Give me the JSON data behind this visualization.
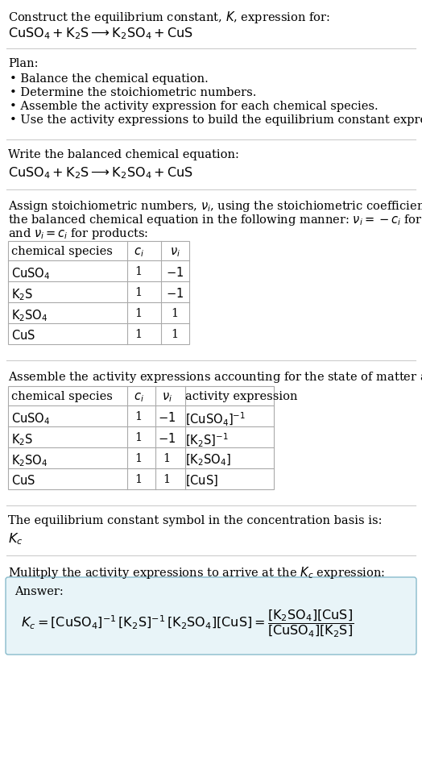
{
  "title_line1": "Construct the equilibrium constant, $K$, expression for:",
  "title_line2": "$\\mathrm{CuSO_4 + K_2S \\longrightarrow K_2SO_4 + CuS}$",
  "plan_header": "Plan:",
  "plan_items": [
    "• Balance the chemical equation.",
    "• Determine the stoichiometric numbers.",
    "• Assemble the activity expression for each chemical species.",
    "• Use the activity expressions to build the equilibrium constant expression."
  ],
  "balanced_header": "Write the balanced chemical equation:",
  "balanced_eq": "$\\mathrm{CuSO_4 + K_2S \\longrightarrow K_2SO_4 + CuS}$",
  "stoich_line1": "Assign stoichiometric numbers, $\\nu_i$, using the stoichiometric coefficients, $c_i$, from",
  "stoich_line2": "the balanced chemical equation in the following manner: $\\nu_i = -c_i$ for reactants",
  "stoich_line3": "and $\\nu_i = c_i$ for products:",
  "table1_headers": [
    "chemical species",
    "$c_i$",
    "$\\nu_i$"
  ],
  "table1_rows": [
    [
      "$\\mathrm{CuSO_4}$",
      "1",
      "$-1$"
    ],
    [
      "$\\mathrm{K_2S}$",
      "1",
      "$-1$"
    ],
    [
      "$\\mathrm{K_2SO_4}$",
      "1",
      "1"
    ],
    [
      "$\\mathrm{CuS}$",
      "1",
      "1"
    ]
  ],
  "activity_header": "Assemble the activity expressions accounting for the state of matter and $\\nu_i$:",
  "table2_headers": [
    "chemical species",
    "$c_i$",
    "$\\nu_i$",
    "activity expression"
  ],
  "table2_rows": [
    [
      "$\\mathrm{CuSO_4}$",
      "1",
      "$-1$",
      "$[\\mathrm{CuSO_4}]^{-1}$"
    ],
    [
      "$\\mathrm{K_2S}$",
      "1",
      "$-1$",
      "$[\\mathrm{K_2S}]^{-1}$"
    ],
    [
      "$\\mathrm{K_2SO_4}$",
      "1",
      "1",
      "$[\\mathrm{K_2SO_4}]$"
    ],
    [
      "$\\mathrm{CuS}$",
      "1",
      "1",
      "$[\\mathrm{CuS}]$"
    ]
  ],
  "kc_header": "The equilibrium constant symbol in the concentration basis is:",
  "kc_symbol": "$K_c$",
  "multiply_header": "Mulitply the activity expressions to arrive at the $K_c$ expression:",
  "answer_label": "Answer:",
  "answer_eq": "$K_c = [\\mathrm{CuSO_4}]^{-1}\\,[\\mathrm{K_2S}]^{-1}\\,[\\mathrm{K_2SO_4}][\\mathrm{CuS}] = \\dfrac{[\\mathrm{K_2SO_4}][\\mathrm{CuS}]}{[\\mathrm{CuSO_4}][\\mathrm{K_2S}]}$",
  "bg_color": "#ffffff",
  "text_color": "#000000",
  "table_border_color": "#aaaaaa",
  "answer_box_color": "#e8f4f8",
  "answer_box_border": "#88bbcc",
  "font_size": 10.5,
  "small_font_size": 10.5
}
